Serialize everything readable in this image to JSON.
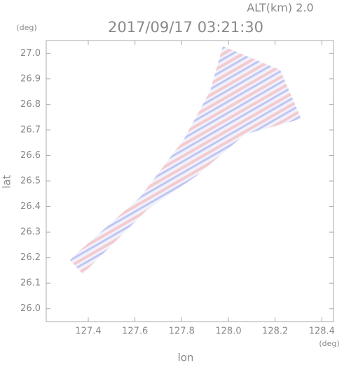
{
  "chart_data": {
    "type": "field",
    "title": "2017/09/17 03:21:30",
    "subtitle": "ALT(km) 2.0",
    "x_label": "lon",
    "y_label": "lat",
    "x_unit": "(deg)",
    "y_unit": "(deg)",
    "xlim": [
      127.22,
      128.45
    ],
    "ylim": [
      25.95,
      27.05
    ],
    "xticks": [
      127.4,
      127.6,
      127.8,
      {
        "value": 128.0,
        "label": "128.0"
      },
      128.2,
      128.4
    ],
    "yticks": [
      {
        "value": 26.0,
        "label": "26.0"
      },
      26.1,
      26.2,
      26.3,
      26.4,
      26.5,
      26.6,
      26.7,
      26.8,
      26.9,
      {
        "value": 27.0,
        "label": "27.0"
      }
    ]
  }
}
